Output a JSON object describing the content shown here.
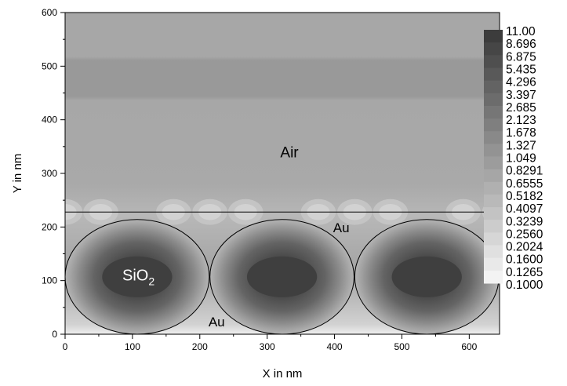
{
  "chart_data": {
    "type": "heatmap",
    "title": "",
    "xlabel": "X in nm",
    "ylabel": "Y in nm",
    "xlim": [
      0,
      645
    ],
    "ylim": [
      0,
      600
    ],
    "x_ticks": [
      "0",
      "100",
      "200",
      "300",
      "400",
      "500",
      "600"
    ],
    "x_tick_values": [
      0,
      100,
      200,
      300,
      400,
      500,
      600
    ],
    "y_ticks": [
      "0",
      "100",
      "200",
      "300",
      "400",
      "500",
      "600"
    ],
    "y_tick_values": [
      0,
      100,
      200,
      300,
      400,
      500,
      600
    ],
    "grid": false,
    "colormap": "grayscale, light to dark",
    "colorbar": {
      "placement": "right",
      "levels": [
        "11.00",
        "8.696",
        "6.875",
        "5.435",
        "4.296",
        "3.397",
        "2.685",
        "2.123",
        "1.678",
        "1.327",
        "1.049",
        "0.8291",
        "0.6555",
        "0.5182",
        "0.4097",
        "0.3239",
        "0.2560",
        "0.2024",
        "0.1600",
        "0.1265",
        "0.1000"
      ]
    },
    "interface_y": 228,
    "spheres": {
      "radius": 107,
      "centers": [
        [
          107,
          107
        ],
        [
          322,
          107
        ],
        [
          537,
          107
        ]
      ]
    },
    "annotations": {
      "air": "Air",
      "au_top": "Au",
      "au_bottom": "Au",
      "sio2_base": "SiO",
      "sio2_sub": "2"
    }
  }
}
